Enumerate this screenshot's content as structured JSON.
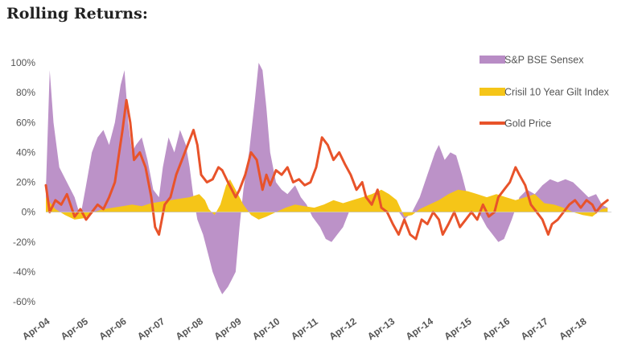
{
  "page": {
    "heading": "Rolling Returns:"
  },
  "chart_data": {
    "type": "area",
    "y_unit": "%",
    "ylim": [
      -60,
      100
    ],
    "yticks": [
      100,
      80,
      60,
      40,
      20,
      0,
      -20,
      -40,
      -60
    ],
    "ytick_labels": [
      "100%",
      "80%",
      "60%",
      "40%",
      "20%",
      "0%",
      "-20%",
      "-40%",
      "-60%"
    ],
    "x_tick_labels": [
      "Apr-04",
      "Apr-05",
      "Apr-06",
      "Apr-07",
      "Apr-08",
      "Apr-09",
      "Apr-10",
      "Apr-11",
      "Apr-12",
      "Apr-13",
      "Apr-14",
      "Apr-15",
      "Apr-16",
      "Apr-17",
      "Apr-18"
    ],
    "x_range": [
      2004.25,
      2019.0
    ],
    "grid": false,
    "legend_position": "top-right",
    "series": [
      {
        "name": "S&P BSE Sensex",
        "kind": "area",
        "color": "#b88cc5",
        "points": [
          [
            2004.25,
            15
          ],
          [
            2004.35,
            95
          ],
          [
            2004.45,
            60
          ],
          [
            2004.6,
            30
          ],
          [
            2004.8,
            20
          ],
          [
            2005.0,
            10
          ],
          [
            2005.15,
            -3
          ],
          [
            2005.3,
            18
          ],
          [
            2005.45,
            40
          ],
          [
            2005.6,
            50
          ],
          [
            2005.75,
            55
          ],
          [
            2005.9,
            45
          ],
          [
            2006.05,
            60
          ],
          [
            2006.2,
            85
          ],
          [
            2006.3,
            95
          ],
          [
            2006.4,
            60
          ],
          [
            2006.5,
            40
          ],
          [
            2006.6,
            45
          ],
          [
            2006.75,
            50
          ],
          [
            2006.9,
            35
          ],
          [
            2007.05,
            15
          ],
          [
            2007.2,
            10
          ],
          [
            2007.3,
            30
          ],
          [
            2007.45,
            50
          ],
          [
            2007.6,
            40
          ],
          [
            2007.75,
            55
          ],
          [
            2007.9,
            45
          ],
          [
            2008.0,
            30
          ],
          [
            2008.1,
            10
          ],
          [
            2008.2,
            -5
          ],
          [
            2008.35,
            -15
          ],
          [
            2008.5,
            -30
          ],
          [
            2008.6,
            -40
          ],
          [
            2008.75,
            -50
          ],
          [
            2008.85,
            -55
          ],
          [
            2009.0,
            -50
          ],
          [
            2009.1,
            -45
          ],
          [
            2009.2,
            -40
          ],
          [
            2009.3,
            -10
          ],
          [
            2009.4,
            15
          ],
          [
            2009.55,
            40
          ],
          [
            2009.7,
            75
          ],
          [
            2009.8,
            100
          ],
          [
            2009.9,
            95
          ],
          [
            2010.0,
            70
          ],
          [
            2010.1,
            40
          ],
          [
            2010.25,
            20
          ],
          [
            2010.4,
            15
          ],
          [
            2010.55,
            12
          ],
          [
            2010.75,
            18
          ],
          [
            2010.9,
            10
          ],
          [
            2011.05,
            5
          ],
          [
            2011.2,
            -3
          ],
          [
            2011.4,
            -10
          ],
          [
            2011.55,
            -18
          ],
          [
            2011.7,
            -20
          ],
          [
            2011.85,
            -15
          ],
          [
            2012.0,
            -10
          ],
          [
            2012.2,
            3
          ],
          [
            2012.4,
            5
          ],
          [
            2012.6,
            10
          ],
          [
            2012.8,
            5
          ],
          [
            2013.0,
            8
          ],
          [
            2013.2,
            3
          ],
          [
            2013.4,
            2
          ],
          [
            2013.6,
            -5
          ],
          [
            2013.8,
            0
          ],
          [
            2014.0,
            10
          ],
          [
            2014.2,
            25
          ],
          [
            2014.4,
            40
          ],
          [
            2014.5,
            45
          ],
          [
            2014.65,
            35
          ],
          [
            2014.8,
            40
          ],
          [
            2014.95,
            38
          ],
          [
            2015.1,
            25
          ],
          [
            2015.25,
            10
          ],
          [
            2015.4,
            5
          ],
          [
            2015.6,
            -3
          ],
          [
            2015.75,
            -10
          ],
          [
            2015.9,
            -15
          ],
          [
            2016.05,
            -20
          ],
          [
            2016.2,
            -18
          ],
          [
            2016.4,
            -5
          ],
          [
            2016.6,
            10
          ],
          [
            2016.8,
            15
          ],
          [
            2017.0,
            12
          ],
          [
            2017.2,
            18
          ],
          [
            2017.4,
            22
          ],
          [
            2017.6,
            20
          ],
          [
            2017.8,
            22
          ],
          [
            2018.0,
            20
          ],
          [
            2018.2,
            15
          ],
          [
            2018.4,
            10
          ],
          [
            2018.6,
            12
          ],
          [
            2018.75,
            5
          ],
          [
            2018.9,
            3
          ]
        ]
      },
      {
        "name": "Crisil 10 Year Gilt Index",
        "kind": "area",
        "color": "#f5c518",
        "points": [
          [
            2004.25,
            10
          ],
          [
            2004.5,
            2
          ],
          [
            2004.75,
            -2
          ],
          [
            2005.0,
            -5
          ],
          [
            2005.25,
            -4
          ],
          [
            2005.5,
            0
          ],
          [
            2005.75,
            2
          ],
          [
            2006.0,
            3
          ],
          [
            2006.25,
            4
          ],
          [
            2006.5,
            5
          ],
          [
            2006.75,
            4
          ],
          [
            2007.0,
            6
          ],
          [
            2007.25,
            7
          ],
          [
            2007.5,
            8
          ],
          [
            2007.75,
            9
          ],
          [
            2008.0,
            10
          ],
          [
            2008.25,
            12
          ],
          [
            2008.4,
            8
          ],
          [
            2008.5,
            2
          ],
          [
            2008.65,
            -2
          ],
          [
            2008.8,
            5
          ],
          [
            2008.95,
            18
          ],
          [
            2009.05,
            22
          ],
          [
            2009.2,
            15
          ],
          [
            2009.4,
            5
          ],
          [
            2009.6,
            -2
          ],
          [
            2009.8,
            -5
          ],
          [
            2010.0,
            -3
          ],
          [
            2010.25,
            0
          ],
          [
            2010.5,
            3
          ],
          [
            2010.75,
            5
          ],
          [
            2011.0,
            4
          ],
          [
            2011.25,
            3
          ],
          [
            2011.5,
            5
          ],
          [
            2011.75,
            8
          ],
          [
            2012.0,
            6
          ],
          [
            2012.25,
            8
          ],
          [
            2012.5,
            10
          ],
          [
            2012.75,
            12
          ],
          [
            2013.0,
            15
          ],
          [
            2013.2,
            12
          ],
          [
            2013.4,
            8
          ],
          [
            2013.6,
            -3
          ],
          [
            2013.8,
            -2
          ],
          [
            2014.0,
            2
          ],
          [
            2014.25,
            5
          ],
          [
            2014.5,
            8
          ],
          [
            2014.75,
            12
          ],
          [
            2015.0,
            15
          ],
          [
            2015.25,
            14
          ],
          [
            2015.5,
            12
          ],
          [
            2015.75,
            10
          ],
          [
            2016.0,
            12
          ],
          [
            2016.25,
            10
          ],
          [
            2016.5,
            8
          ],
          [
            2016.75,
            10
          ],
          [
            2017.0,
            12
          ],
          [
            2017.25,
            6
          ],
          [
            2017.5,
            5
          ],
          [
            2017.75,
            3
          ],
          [
            2018.0,
            0
          ],
          [
            2018.25,
            -2
          ],
          [
            2018.5,
            -3
          ],
          [
            2018.75,
            2
          ],
          [
            2018.9,
            3
          ]
        ]
      },
      {
        "name": "Gold Price",
        "kind": "line",
        "color": "#e8532a",
        "points": [
          [
            2004.25,
            18
          ],
          [
            2004.35,
            0
          ],
          [
            2004.5,
            8
          ],
          [
            2004.65,
            5
          ],
          [
            2004.8,
            12
          ],
          [
            2005.0,
            -3
          ],
          [
            2005.15,
            2
          ],
          [
            2005.3,
            -5
          ],
          [
            2005.45,
            0
          ],
          [
            2005.6,
            5
          ],
          [
            2005.75,
            2
          ],
          [
            2005.9,
            10
          ],
          [
            2006.05,
            20
          ],
          [
            2006.15,
            38
          ],
          [
            2006.25,
            55
          ],
          [
            2006.35,
            75
          ],
          [
            2006.45,
            60
          ],
          [
            2006.55,
            35
          ],
          [
            2006.7,
            40
          ],
          [
            2006.85,
            30
          ],
          [
            2007.0,
            10
          ],
          [
            2007.1,
            -10
          ],
          [
            2007.2,
            -15
          ],
          [
            2007.35,
            5
          ],
          [
            2007.5,
            10
          ],
          [
            2007.65,
            25
          ],
          [
            2007.8,
            35
          ],
          [
            2007.95,
            45
          ],
          [
            2008.1,
            55
          ],
          [
            2008.2,
            45
          ],
          [
            2008.3,
            25
          ],
          [
            2008.45,
            20
          ],
          [
            2008.6,
            22
          ],
          [
            2008.75,
            30
          ],
          [
            2008.85,
            28
          ],
          [
            2009.0,
            20
          ],
          [
            2009.1,
            15
          ],
          [
            2009.2,
            10
          ],
          [
            2009.3,
            15
          ],
          [
            2009.45,
            25
          ],
          [
            2009.6,
            40
          ],
          [
            2009.75,
            35
          ],
          [
            2009.9,
            15
          ],
          [
            2010.0,
            25
          ],
          [
            2010.1,
            18
          ],
          [
            2010.25,
            28
          ],
          [
            2010.4,
            25
          ],
          [
            2010.55,
            30
          ],
          [
            2010.7,
            20
          ],
          [
            2010.85,
            22
          ],
          [
            2011.0,
            18
          ],
          [
            2011.15,
            20
          ],
          [
            2011.3,
            30
          ],
          [
            2011.45,
            50
          ],
          [
            2011.6,
            45
          ],
          [
            2011.75,
            35
          ],
          [
            2011.9,
            40
          ],
          [
            2012.05,
            32
          ],
          [
            2012.2,
            25
          ],
          [
            2012.35,
            15
          ],
          [
            2012.5,
            20
          ],
          [
            2012.6,
            10
          ],
          [
            2012.75,
            5
          ],
          [
            2012.9,
            15
          ],
          [
            2013.0,
            3
          ],
          [
            2013.15,
            0
          ],
          [
            2013.3,
            -8
          ],
          [
            2013.45,
            -15
          ],
          [
            2013.6,
            -5
          ],
          [
            2013.75,
            -15
          ],
          [
            2013.9,
            -18
          ],
          [
            2014.05,
            -5
          ],
          [
            2014.2,
            -8
          ],
          [
            2014.35,
            0
          ],
          [
            2014.5,
            -5
          ],
          [
            2014.6,
            -15
          ],
          [
            2014.75,
            -8
          ],
          [
            2014.9,
            0
          ],
          [
            2015.05,
            -10
          ],
          [
            2015.2,
            -5
          ],
          [
            2015.35,
            0
          ],
          [
            2015.5,
            -5
          ],
          [
            2015.65,
            5
          ],
          [
            2015.8,
            -3
          ],
          [
            2015.95,
            0
          ],
          [
            2016.05,
            10
          ],
          [
            2016.2,
            15
          ],
          [
            2016.35,
            20
          ],
          [
            2016.5,
            30
          ],
          [
            2016.6,
            25
          ],
          [
            2016.75,
            18
          ],
          [
            2016.9,
            5
          ],
          [
            2017.05,
            0
          ],
          [
            2017.2,
            -5
          ],
          [
            2017.35,
            -15
          ],
          [
            2017.45,
            -8
          ],
          [
            2017.6,
            -5
          ],
          [
            2017.75,
            0
          ],
          [
            2017.9,
            5
          ],
          [
            2018.05,
            8
          ],
          [
            2018.2,
            3
          ],
          [
            2018.35,
            8
          ],
          [
            2018.5,
            5
          ],
          [
            2018.6,
            0
          ],
          [
            2018.75,
            5
          ],
          [
            2018.9,
            8
          ]
        ]
      }
    ]
  }
}
